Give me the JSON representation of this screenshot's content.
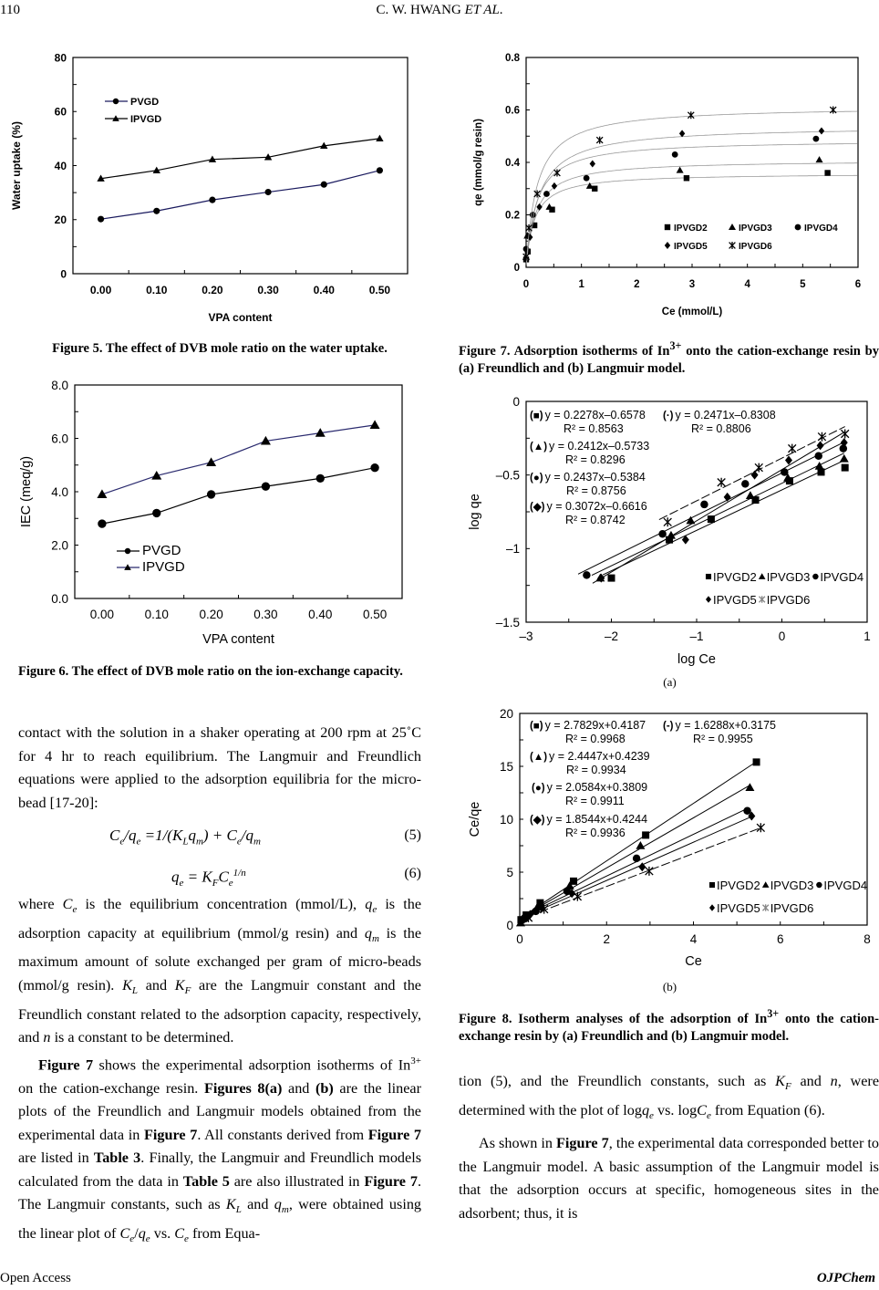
{
  "header": {
    "page_number": "110",
    "running_title": "C. W. HWANG *ET AL*."
  },
  "footer": {
    "left": "Open Access",
    "right": "OJPChem"
  },
  "figures": {
    "fig5_caption": "Figure 5. The effect of DVB mole ratio on the water uptake.",
    "fig6_caption": "Figure 6. The effect of DVB mole ratio on the ion-exchange capacity.",
    "fig7_caption": "Figure 7. Adsorption isotherms of In^{3+} onto the cation-ex­change resin by (a) Freundlich and (b) Langmuir model.",
    "fig8_a_label": "(a)",
    "fig8_b_label": "(b)",
    "fig8_caption": "Figure 8. Isotherm analyses of the adsorption of In^{3+} onto the cation-exchange resin by (a) Freundlich and (b) Lang­muir model."
  },
  "text": {
    "left_p1": "contact with the solution in a shaker operating at 200 rpm at 25˚C for 4 hr to reach equilibrium. The Langmuir and Freundlich equations were applied to the adsorption equilibria for the micro-bead [17-20]:",
    "eq5": "C_{e}/q_{e} =1/(K_{L}q_{m}) + C_{e}/q_{m}",
    "eq5_num": "(5)",
    "eq6": "q_{e} = K_{F}C_{e}^{1/n}",
    "eq6_num": "(6)",
    "left_p2": "where *C*_{e} is the equilibrium concentration (mmol/L), *q*_{e} is the adsorption capacity at equilibrium (mmol/g resin) and *q*_{m} is the maximum amount of solute exchanged per gram of micro-beads (mmol/g resin). *K*_{L} and *K*_{F} are the Lang­muir constant and the Freundlich constant related to the adsorption capacity, respectively, and *n* is a constant to be determined.",
    "left_p3": "**Figure 7** shows the experimental adsorption isotherms of In^{3+} on the cation-exchange resin. **Figures 8(a)** and **(b)** are the linear plots of the Freundlich and Langmuir mod­els obtained from the experimental data in **Figure 7**. All constants derived from **Figure 7** are listed in **Table 3**. Finally, the Langmuir and Freundlich models calculated from the data in **Table 5** are also illustrated in **Figure 7**. The Langmuir constants, such as *K*_{L} and *q*_{m}, were ob­tained using the linear plot of *C*_{e}/*q*_{e} vs. *C*_{e} from Equa-",
    "right_p1": "tion (5), and the Freundlich constants, such as *K*_{F} and *n*, were determined with the plot of log*q*_{e} vs. log*C*_{e} from Equation (6).",
    "right_p2": "As shown in **Figure 7**, the experimental data corre­sponded better to the Langmuir model. A basic assump­tion of the Langmuir model is that the adsorption occurs at specific, homogeneous sites in the adsorbent; thus, it is"
  },
  "chart_data": [
    {
      "id": "fig5",
      "type": "line",
      "title": "",
      "xlabel": "VPA content",
      "ylabel": "Water uptake (%)",
      "categories": [
        "0.00",
        "0.10",
        "0.20",
        "0.30",
        "0.40",
        "0.50"
      ],
      "ylim": [
        0,
        80
      ],
      "yticks": [
        0,
        20,
        40,
        60,
        80
      ],
      "ytick_labels": [
        "0",
        "20",
        "40",
        "60",
        "80"
      ],
      "yminor": 10,
      "legend": "upper-left",
      "series": [
        {
          "name": "PVGD",
          "marker": "circle",
          "color": "#1a1a5e",
          "values": [
            20.2,
            23.2,
            27.3,
            30.2,
            33.0,
            38.2
          ]
        },
        {
          "name": "IPVGD",
          "marker": "triangle",
          "color": "#000000",
          "values": [
            35.2,
            38.2,
            42.3,
            43.1,
            47.3,
            50.0
          ]
        }
      ]
    },
    {
      "id": "fig6",
      "type": "line",
      "title": "",
      "xlabel": "VPA content",
      "ylabel": "IEC (meq/g)",
      "categories": [
        "0.00",
        "0.10",
        "0.20",
        "0.30",
        "0.40",
        "0.50"
      ],
      "ylim": [
        0,
        8
      ],
      "yticks": [
        0,
        2,
        4,
        6,
        8
      ],
      "ytick_labels": [
        "0.0",
        "2.0",
        "4.0",
        "6.0",
        "8.0"
      ],
      "yminor": 1,
      "legend": "lower-left",
      "series": [
        {
          "name": "PVGD",
          "marker": "circle",
          "color": "#000000",
          "values": [
            2.8,
            3.2,
            3.9,
            4.2,
            4.5,
            4.9
          ]
        },
        {
          "name": "IPVGD",
          "marker": "triangle",
          "color": "#2a2a6e",
          "values": [
            3.9,
            4.6,
            5.1,
            5.9,
            6.2,
            6.5
          ]
        }
      ]
    },
    {
      "id": "fig7",
      "type": "scatter",
      "title": "",
      "xlabel": "Ce (mmol/L)",
      "ylabel": "qe (mmol/g resin)",
      "xlim": [
        0,
        6
      ],
      "ylim": [
        0,
        0.8
      ],
      "xticks": [
        0,
        1,
        2,
        3,
        4,
        5,
        6
      ],
      "xtick_labels": [
        "0",
        "1",
        "2",
        "3",
        "4",
        "5",
        "6"
      ],
      "xminor": 0.5,
      "yticks": [
        0,
        0.2,
        0.4,
        0.6,
        0.8
      ],
      "ytick_labels": [
        "0",
        "0.2",
        "0.4",
        "0.6",
        "0.8"
      ],
      "yminor": 0.1,
      "legend": "lower-right",
      "series": [
        {
          "name": "IPVGD2",
          "marker": "square",
          "fit": {
            "model": "langmuir",
            "qm": 0.359,
            "KL": 6.65
          },
          "points": [
            [
              0,
              0.03
            ],
            [
              0.03,
              0.06
            ],
            [
              0.15,
              0.16
            ],
            [
              0.47,
              0.22
            ],
            [
              1.24,
              0.3
            ],
            [
              2.9,
              0.34
            ],
            [
              5.45,
              0.36
            ]
          ]
        },
        {
          "name": "IPVGD3",
          "marker": "triangle",
          "fit": {
            "model": "langmuir",
            "qm": 0.409,
            "KL": 5.77
          },
          "points": [
            [
              0,
              0.04
            ],
            [
              0.02,
              0.12
            ],
            [
              0.42,
              0.23
            ],
            [
              1.15,
              0.31
            ],
            [
              2.78,
              0.37
            ],
            [
              5.3,
              0.41
            ]
          ]
        },
        {
          "name": "IPVGD4",
          "marker": "circle",
          "fit": {
            "model": "langmuir",
            "qm": 0.486,
            "KL": 5.4
          },
          "points": [
            [
              0,
              0.07
            ],
            [
              0.12,
              0.2
            ],
            [
              0.37,
              0.28
            ],
            [
              1.09,
              0.34
            ],
            [
              2.69,
              0.43
            ],
            [
              5.24,
              0.49
            ]
          ]
        },
        {
          "name": "IPVGD5",
          "marker": "diamond",
          "fit": {
            "model": "langmuir",
            "qm": 0.539,
            "KL": 4.37
          },
          "points": [
            [
              0.03,
              0.12
            ],
            [
              0.07,
              0.115
            ],
            [
              0.24,
              0.23
            ],
            [
              0.51,
              0.31
            ],
            [
              1.2,
              0.395
            ],
            [
              2.82,
              0.51
            ],
            [
              5.34,
              0.52
            ]
          ]
        },
        {
          "name": "IPVGD6",
          "marker": "asterisk",
          "fit": {
            "model": "langmuir",
            "qm": 0.614,
            "KL": 5.13
          },
          "points": [
            [
              0,
              0.04
            ],
            [
              0.05,
              0.15
            ],
            [
              0.2,
              0.28
            ],
            [
              0.56,
              0.36
            ],
            [
              1.33,
              0.485
            ],
            [
              2.98,
              0.58
            ],
            [
              5.55,
              0.6
            ]
          ]
        }
      ]
    },
    {
      "id": "fig8a",
      "type": "scatter",
      "title": "",
      "xlabel": "log Ce",
      "ylabel": "log qe",
      "xlim": [
        -3,
        1
      ],
      "ylim": [
        -1.5,
        0
      ],
      "xticks": [
        -3,
        -2,
        -1,
        0,
        1
      ],
      "xtick_labels": [
        "–3",
        "–2",
        "–1",
        "0",
        "1"
      ],
      "xminor": 0.5,
      "yticks": [
        0,
        -0.5,
        -1,
        -1.5
      ],
      "ytick_labels": [
        "0",
        "–0.5",
        "–1",
        "–1.5"
      ],
      "yminor": 0.25,
      "legend": "lower-right",
      "annotations": [
        {
          "symbol": "(■)",
          "eq": "y = 0.2278x–0.6578",
          "r2": "R² = 0.8563"
        },
        {
          "symbol": "(·)",
          "eq": "y = 0.2471x–0.8308",
          "r2": "R² = 0.8806"
        },
        {
          "symbol": "(▲)",
          "eq": "y = 0.2412x–0.5733",
          "r2": "R² = 0.8296"
        },
        {
          "symbol": "(●)",
          "eq": "y = 0.2437x–0.5384",
          "r2": "R² = 0.8756"
        },
        {
          "symbol": "(◆)",
          "eq": "y = 0.3072x–0.6616",
          "r2": "R² = 0.8742"
        }
      ],
      "series": [
        {
          "name": "IPVGD2",
          "marker": "square",
          "points": [
            [
              -2.0,
              -1.2
            ],
            [
              -1.32,
              -0.94
            ],
            [
              -0.83,
              -0.8
            ],
            [
              -0.31,
              -0.67
            ],
            [
              0.09,
              -0.54
            ],
            [
              0.46,
              -0.48
            ],
            [
              0.74,
              -0.45
            ]
          ]
        },
        {
          "name": "IPVGD3",
          "marker": "triangle",
          "points": [
            [
              -2.13,
              -1.2
            ],
            [
              -1.3,
              -0.91
            ],
            [
              -1.07,
              -0.81
            ],
            [
              -0.37,
              -0.64
            ],
            [
              0.07,
              -0.52
            ],
            [
              0.44,
              -0.44
            ],
            [
              0.73,
              -0.39
            ]
          ]
        },
        {
          "name": "IPVGD4",
          "marker": "circle",
          "points": [
            [
              -2.29,
              -1.18
            ],
            [
              -1.4,
              -0.9
            ],
            [
              -0.91,
              -0.7
            ],
            [
              -0.43,
              -0.56
            ],
            [
              0.03,
              -0.48
            ],
            [
              0.43,
              -0.37
            ],
            [
              0.72,
              -0.32
            ]
          ]
        },
        {
          "name": "IPVGD5",
          "marker": "diamond",
          "points": [
            [
              -2.12,
              -1.2
            ],
            [
              -1.13,
              -0.94
            ],
            [
              -0.64,
              -0.65
            ],
            [
              -0.32,
              -0.5
            ],
            [
              0.08,
              -0.4
            ],
            [
              0.45,
              -0.3
            ],
            [
              0.73,
              -0.28
            ]
          ]
        },
        {
          "name": "IPVGD6",
          "marker": "asterisk",
          "points": [
            [
              -1.34,
              -0.82
            ],
            [
              -0.71,
              -0.55
            ],
            [
              -0.27,
              -0.45
            ],
            [
              0.12,
              -0.32
            ],
            [
              0.47,
              -0.24
            ],
            [
              0.74,
              -0.22
            ]
          ]
        }
      ]
    },
    {
      "id": "fig8b",
      "type": "scatter",
      "title": "",
      "xlabel": "Ce",
      "ylabel": "Ce/qe",
      "xlim": [
        0,
        8
      ],
      "ylim": [
        0,
        20
      ],
      "xticks": [
        0,
        2,
        4,
        6,
        8
      ],
      "xtick_labels": [
        "0",
        "2",
        "4",
        "6",
        "8"
      ],
      "xminor": 1,
      "yticks": [
        0,
        5,
        10,
        15,
        20
      ],
      "ytick_labels": [
        "0",
        "5",
        "10",
        "15",
        "20"
      ],
      "yminor": 2.5,
      "legend": "lower-right",
      "annotations": [
        {
          "symbol": "(■)",
          "eq": "y = 2.7829x+0.4187",
          "r2": "R² = 0.9968"
        },
        {
          "symbol": "(-)",
          "eq": "y = 1.6288x+0.3175",
          "r2": "R² = 0.9955"
        },
        {
          "symbol": "(▲)",
          "eq": "y = 2.4447x+0.4239",
          "r2": "R² = 0.9934"
        },
        {
          "symbol": "(●)",
          "eq": "y = 2.0584x+0.3809",
          "r2": "R² = 0.9911"
        },
        {
          "symbol": "(◆)",
          "eq": "y = 1.8544x+0.4244",
          "r2": "R² = 0.9936"
        }
      ],
      "series": [
        {
          "name": "IPVGD2",
          "marker": "square",
          "points": [
            [
              0.03,
              0.5
            ],
            [
              0.15,
              0.95
            ],
            [
              0.47,
              2.1
            ],
            [
              1.24,
              4.15
            ],
            [
              2.9,
              8.5
            ],
            [
              5.45,
              15.4
            ]
          ]
        },
        {
          "name": "IPVGD3",
          "marker": "triangle",
          "points": [
            [
              0.02,
              0.2
            ],
            [
              0.42,
              1.8
            ],
            [
              1.15,
              3.7
            ],
            [
              2.78,
              7.5
            ],
            [
              5.3,
              13.0
            ]
          ]
        },
        {
          "name": "IPVGD4",
          "marker": "circle",
          "points": [
            [
              0.12,
              0.6
            ],
            [
              0.37,
              1.3
            ],
            [
              1.09,
              3.2
            ],
            [
              2.69,
              6.3
            ],
            [
              5.24,
              10.8
            ]
          ]
        },
        {
          "name": "IPVGD5",
          "marker": "diamond",
          "points": [
            [
              0.07,
              0.6
            ],
            [
              0.24,
              1.0
            ],
            [
              0.51,
              1.6
            ],
            [
              1.2,
              3.0
            ],
            [
              2.82,
              5.5
            ],
            [
              5.34,
              10.3
            ]
          ]
        },
        {
          "name": "IPVGD6",
          "marker": "asterisk",
          "points": [
            [
              0.2,
              0.7
            ],
            [
              0.56,
              1.5
            ],
            [
              1.33,
              2.7
            ],
            [
              2.98,
              5.1
            ],
            [
              5.55,
              9.2
            ]
          ]
        }
      ]
    }
  ]
}
